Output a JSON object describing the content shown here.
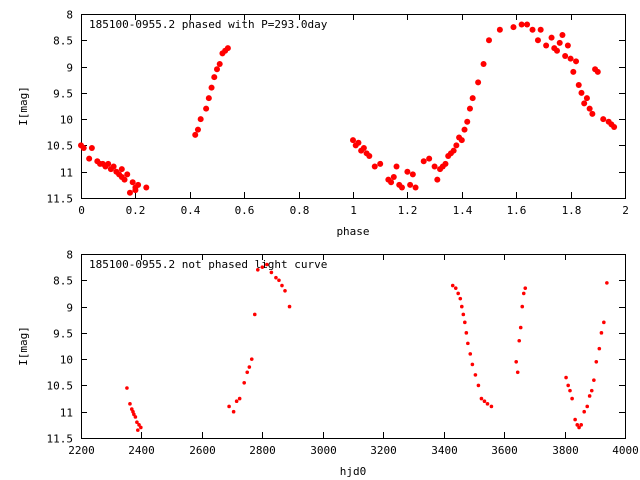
{
  "chart_data": [
    {
      "type": "scatter",
      "title": "185100-0955.2 phased with P=293.0day",
      "xlabel": "phase",
      "ylabel": "I[mag]",
      "xlim": [
        0,
        2
      ],
      "ylim": [
        11.5,
        8
      ],
      "xticks": [
        "0",
        "0.2",
        "0.4",
        "0.6",
        "0.8",
        "1",
        "1.2",
        "1.4",
        "1.6",
        "1.8",
        "2"
      ],
      "yticks": [
        "8",
        "8.5",
        "9",
        "9.5",
        "10",
        "10.5",
        "11",
        "11.5"
      ],
      "xtick_values": [
        0,
        0.2,
        0.4,
        0.6,
        0.8,
        1,
        1.2,
        1.4,
        1.6,
        1.8,
        2
      ],
      "ytick_values": [
        8,
        8.5,
        9,
        9.5,
        10,
        10.5,
        11,
        11.5
      ],
      "color": "#ff0000",
      "points": [
        [
          0.0,
          10.5
        ],
        [
          0.01,
          10.55
        ],
        [
          0.03,
          10.75
        ],
        [
          0.04,
          10.55
        ],
        [
          0.06,
          10.8
        ],
        [
          0.07,
          10.85
        ],
        [
          0.08,
          10.85
        ],
        [
          0.09,
          10.9
        ],
        [
          0.1,
          10.85
        ],
        [
          0.11,
          10.95
        ],
        [
          0.12,
          10.9
        ],
        [
          0.13,
          11.0
        ],
        [
          0.14,
          11.05
        ],
        [
          0.15,
          10.95
        ],
        [
          0.15,
          11.1
        ],
        [
          0.16,
          11.15
        ],
        [
          0.17,
          11.05
        ],
        [
          0.18,
          11.4
        ],
        [
          0.19,
          11.2
        ],
        [
          0.2,
          11.3
        ],
        [
          0.2,
          11.35
        ],
        [
          0.21,
          11.25
        ],
        [
          0.24,
          11.3
        ],
        [
          0.42,
          10.3
        ],
        [
          0.43,
          10.2
        ],
        [
          0.44,
          10.0
        ],
        [
          0.46,
          9.8
        ],
        [
          0.47,
          9.6
        ],
        [
          0.48,
          9.4
        ],
        [
          0.49,
          9.2
        ],
        [
          0.5,
          9.05
        ],
        [
          0.51,
          8.95
        ],
        [
          0.52,
          8.75
        ],
        [
          0.53,
          8.7
        ],
        [
          0.54,
          8.65
        ],
        [
          1.0,
          10.4
        ],
        [
          1.01,
          10.5
        ],
        [
          1.02,
          10.45
        ],
        [
          1.03,
          10.6
        ],
        [
          1.04,
          10.55
        ],
        [
          1.05,
          10.65
        ],
        [
          1.06,
          10.7
        ],
        [
          1.08,
          10.9
        ],
        [
          1.1,
          10.85
        ],
        [
          1.13,
          11.15
        ],
        [
          1.14,
          11.2
        ],
        [
          1.15,
          11.1
        ],
        [
          1.16,
          10.9
        ],
        [
          1.17,
          11.25
        ],
        [
          1.18,
          11.3
        ],
        [
          1.2,
          11.0
        ],
        [
          1.21,
          11.25
        ],
        [
          1.22,
          11.05
        ],
        [
          1.23,
          11.3
        ],
        [
          1.26,
          10.8
        ],
        [
          1.28,
          10.75
        ],
        [
          1.3,
          10.9
        ],
        [
          1.31,
          11.15
        ],
        [
          1.32,
          10.95
        ],
        [
          1.33,
          10.9
        ],
        [
          1.34,
          10.85
        ],
        [
          1.35,
          10.7
        ],
        [
          1.36,
          10.65
        ],
        [
          1.37,
          10.6
        ],
        [
          1.38,
          10.5
        ],
        [
          1.39,
          10.35
        ],
        [
          1.4,
          10.4
        ],
        [
          1.41,
          10.2
        ],
        [
          1.42,
          10.05
        ],
        [
          1.43,
          9.8
        ],
        [
          1.44,
          9.6
        ],
        [
          1.46,
          9.3
        ],
        [
          1.48,
          8.95
        ],
        [
          1.5,
          8.5
        ],
        [
          1.54,
          8.3
        ],
        [
          1.59,
          8.25
        ],
        [
          1.62,
          8.2
        ],
        [
          1.64,
          8.2
        ],
        [
          1.66,
          8.3
        ],
        [
          1.68,
          8.5
        ],
        [
          1.69,
          8.3
        ],
        [
          1.71,
          8.6
        ],
        [
          1.73,
          8.45
        ],
        [
          1.74,
          8.65
        ],
        [
          1.75,
          8.7
        ],
        [
          1.76,
          8.55
        ],
        [
          1.77,
          8.4
        ],
        [
          1.78,
          8.8
        ],
        [
          1.79,
          8.6
        ],
        [
          1.8,
          8.85
        ],
        [
          1.81,
          9.1
        ],
        [
          1.82,
          8.9
        ],
        [
          1.83,
          9.35
        ],
        [
          1.84,
          9.5
        ],
        [
          1.85,
          9.7
        ],
        [
          1.86,
          9.6
        ],
        [
          1.87,
          9.8
        ],
        [
          1.88,
          9.9
        ],
        [
          1.89,
          9.05
        ],
        [
          1.9,
          9.1
        ],
        [
          1.92,
          10.0
        ],
        [
          1.94,
          10.05
        ],
        [
          1.95,
          10.1
        ],
        [
          1.96,
          10.15
        ]
      ]
    },
    {
      "type": "scatter",
      "title": "185100-0955.2 not phased light curve",
      "xlabel": "hjd0",
      "ylabel": "I[mag]",
      "xlim": [
        2200,
        4000
      ],
      "ylim": [
        11.5,
        8
      ],
      "xticks": [
        "2200",
        "2400",
        "2600",
        "2800",
        "3000",
        "3200",
        "3400",
        "3600",
        "3800",
        "4000"
      ],
      "yticks": [
        "8",
        "8.5",
        "9",
        "9.5",
        "10",
        "10.5",
        "11",
        "11.5"
      ],
      "xtick_values": [
        2200,
        2400,
        2600,
        2800,
        3000,
        3200,
        3400,
        3600,
        3800,
        4000
      ],
      "ytick_values": [
        8,
        8.5,
        9,
        9.5,
        10,
        10.5,
        11,
        11.5
      ],
      "color": "#ff0000",
      "points": [
        [
          2352,
          10.55
        ],
        [
          2362,
          10.85
        ],
        [
          2368,
          10.95
        ],
        [
          2372,
          11.0
        ],
        [
          2375,
          11.05
        ],
        [
          2380,
          11.1
        ],
        [
          2385,
          11.2
        ],
        [
          2388,
          11.35
        ],
        [
          2392,
          11.25
        ],
        [
          2398,
          11.3
        ],
        [
          2690,
          10.9
        ],
        [
          2705,
          11.0
        ],
        [
          2715,
          10.8
        ],
        [
          2725,
          10.75
        ],
        [
          2740,
          10.45
        ],
        [
          2750,
          10.25
        ],
        [
          2757,
          10.15
        ],
        [
          2765,
          10.0
        ],
        [
          2775,
          9.15
        ],
        [
          2785,
          8.3
        ],
        [
          2800,
          8.25
        ],
        [
          2815,
          8.2
        ],
        [
          2830,
          8.35
        ],
        [
          2845,
          8.45
        ],
        [
          2855,
          8.5
        ],
        [
          2865,
          8.6
        ],
        [
          2875,
          8.7
        ],
        [
          2890,
          9.0
        ],
        [
          3430,
          8.6
        ],
        [
          3440,
          8.65
        ],
        [
          3448,
          8.75
        ],
        [
          3455,
          8.85
        ],
        [
          3460,
          9.0
        ],
        [
          3465,
          9.15
        ],
        [
          3470,
          9.3
        ],
        [
          3475,
          9.5
        ],
        [
          3480,
          9.7
        ],
        [
          3488,
          9.9
        ],
        [
          3495,
          10.1
        ],
        [
          3505,
          10.3
        ],
        [
          3515,
          10.5
        ],
        [
          3525,
          10.75
        ],
        [
          3535,
          10.8
        ],
        [
          3545,
          10.85
        ],
        [
          3558,
          10.9
        ],
        [
          3640,
          10.05
        ],
        [
          3645,
          10.25
        ],
        [
          3650,
          9.65
        ],
        [
          3655,
          9.4
        ],
        [
          3660,
          9.0
        ],
        [
          3665,
          8.75
        ],
        [
          3670,
          8.65
        ],
        [
          3805,
          10.35
        ],
        [
          3812,
          10.5
        ],
        [
          3818,
          10.6
        ],
        [
          3825,
          10.75
        ],
        [
          3835,
          11.15
        ],
        [
          3842,
          11.25
        ],
        [
          3848,
          11.3
        ],
        [
          3855,
          11.25
        ],
        [
          3865,
          11.0
        ],
        [
          3875,
          10.9
        ],
        [
          3883,
          10.7
        ],
        [
          3890,
          10.6
        ],
        [
          3897,
          10.4
        ],
        [
          3905,
          10.05
        ],
        [
          3915,
          9.8
        ],
        [
          3922,
          9.5
        ],
        [
          3930,
          9.3
        ],
        [
          3940,
          8.55
        ]
      ]
    }
  ]
}
